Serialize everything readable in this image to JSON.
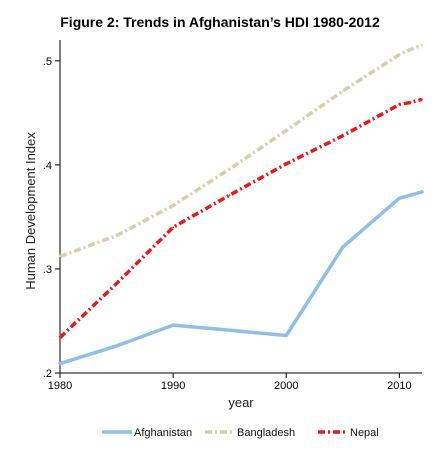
{
  "chart_data": {
    "type": "line",
    "title": "Figure 2: Trends in Afghanistan’s HDI 1980-2012",
    "xlabel": "year",
    "ylabel": "Human Development Index",
    "xlim": [
      1980,
      2012
    ],
    "ylim": [
      0.2,
      0.52
    ],
    "x_ticks": [
      1980,
      1990,
      2000,
      2010
    ],
    "x_tick_labels": [
      "1980",
      "1990",
      "2000",
      "2010"
    ],
    "y_ticks": [
      0.2,
      0.3,
      0.4,
      0.5
    ],
    "y_tick_labels": [
      ".2",
      ".3",
      ".4",
      ".5"
    ],
    "grid": false,
    "legend_position": "bottom",
    "series": [
      {
        "name": "Afghanistan",
        "color": "#8fbfe3",
        "style": "solid",
        "x": [
          1980,
          1985,
          1990,
          1995,
          2000,
          2005,
          2010,
          2011,
          2012
        ],
        "y": [
          0.209,
          0.226,
          0.246,
          0.241,
          0.236,
          0.321,
          0.368,
          0.371,
          0.374
        ]
      },
      {
        "name": "Bangladesh",
        "color": "#d6d0a9",
        "style": "dash-dot",
        "x": [
          1980,
          1985,
          1990,
          1995,
          2000,
          2005,
          2010,
          2011,
          2012
        ],
        "y": [
          0.312,
          0.332,
          0.361,
          0.396,
          0.433,
          0.471,
          0.506,
          0.511,
          0.515
        ]
      },
      {
        "name": "Nepal",
        "color": "#e41a1c",
        "style": "dash-dot",
        "x": [
          1980,
          1985,
          1990,
          1995,
          2000,
          2005,
          2010,
          2011,
          2012
        ],
        "y": [
          0.234,
          0.286,
          0.34,
          0.371,
          0.401,
          0.428,
          0.458,
          0.46,
          0.463
        ]
      }
    ]
  }
}
